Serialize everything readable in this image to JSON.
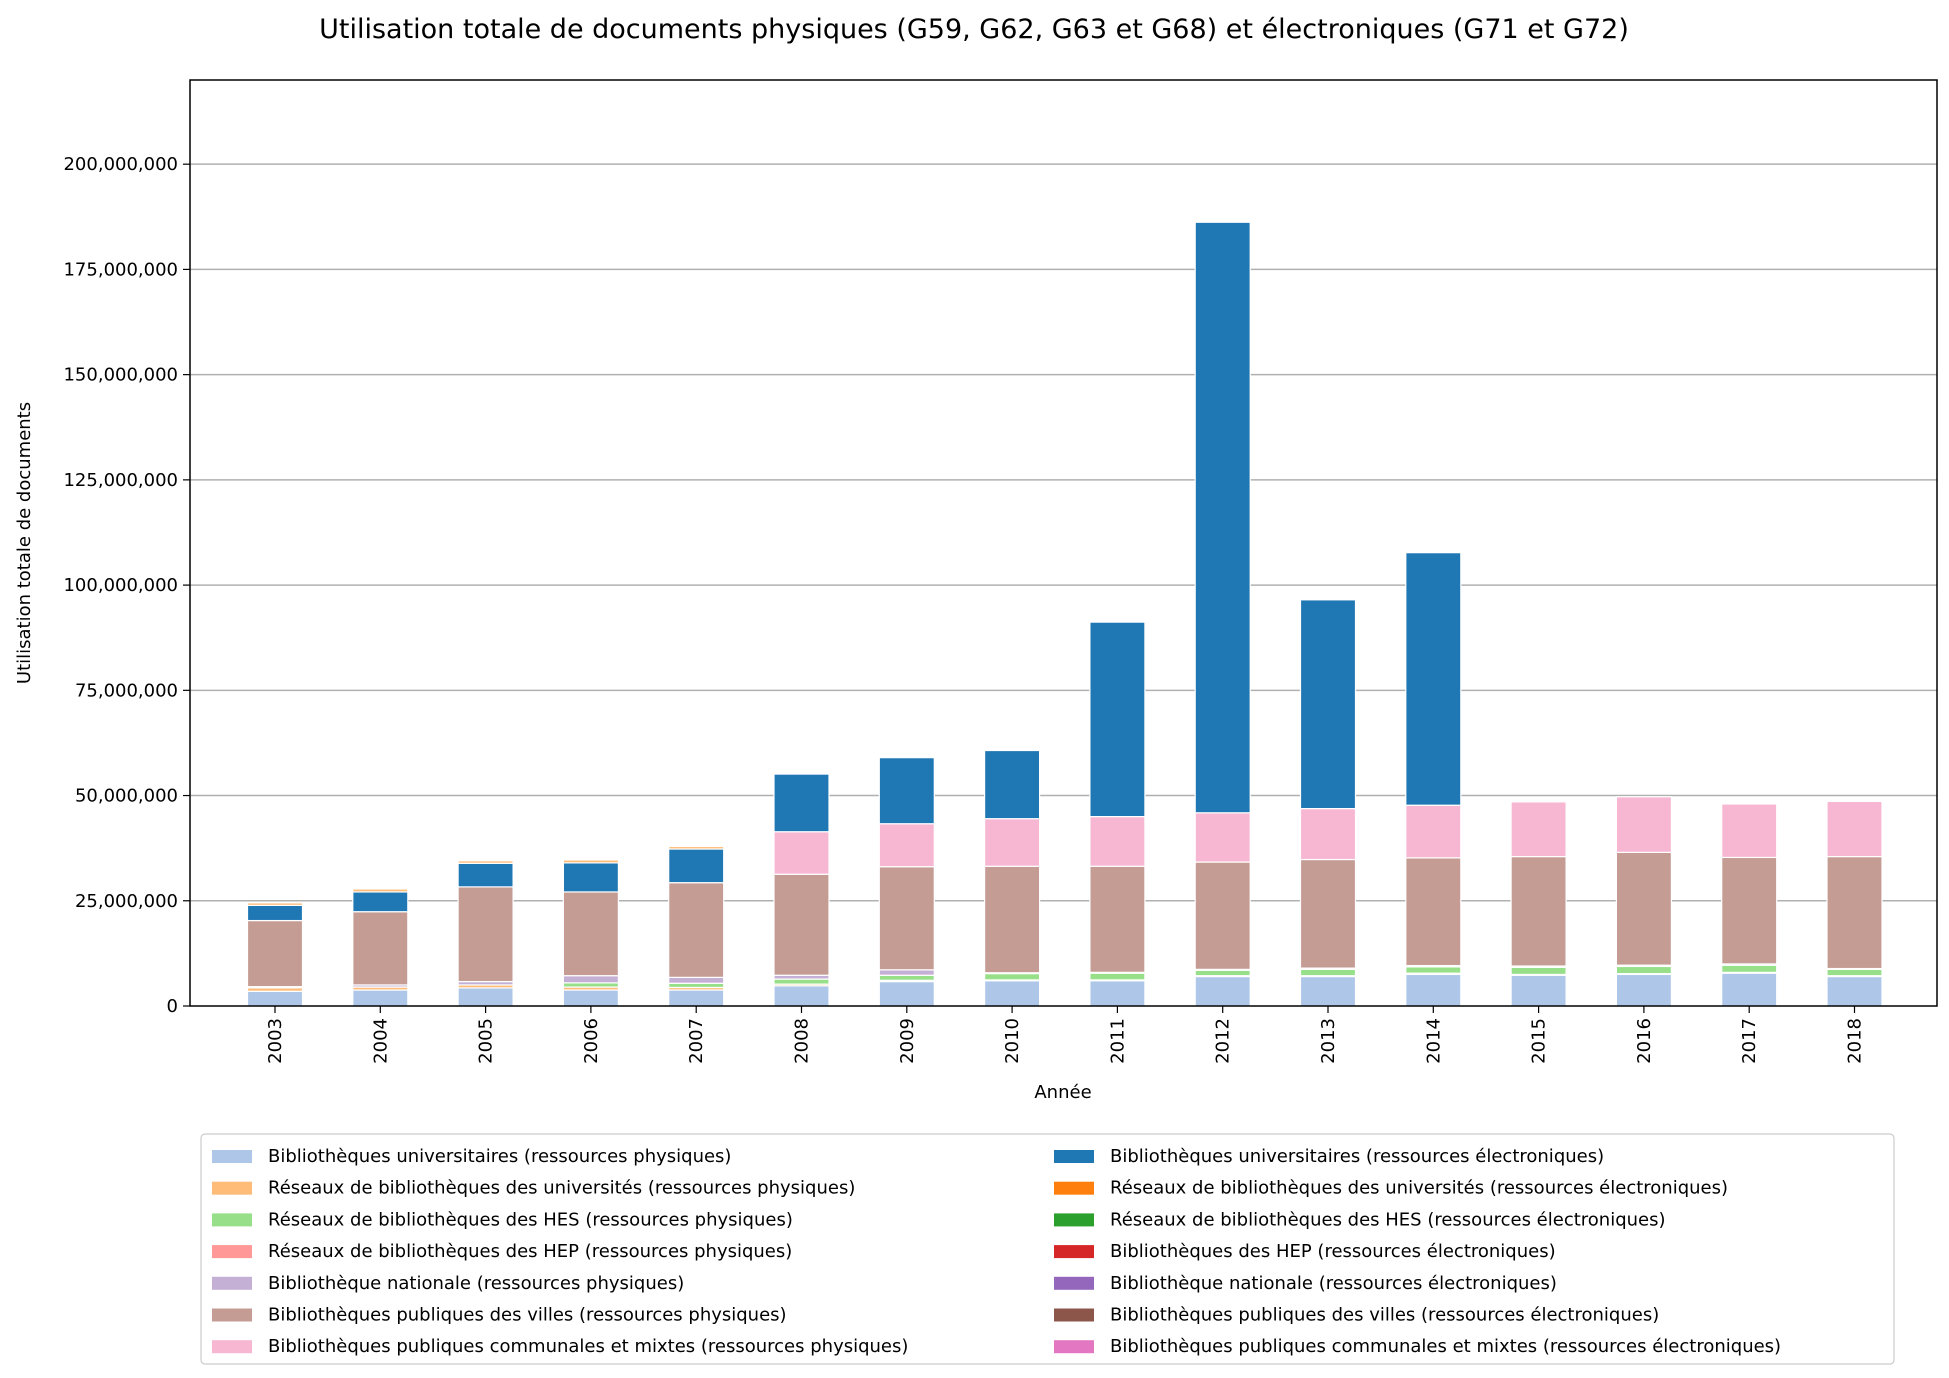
{
  "chart_data": {
    "type": "bar",
    "stacked": true,
    "title": "Utilisation totale de documents physiques (G59, G62, G63 et G68) et électroniques (G71 et G72)",
    "xlabel": "Année",
    "ylabel": "Utilisation totale de documents",
    "ylim": [
      0,
      220000000
    ],
    "yticks": [
      0,
      25000000,
      50000000,
      75000000,
      100000000,
      125000000,
      150000000,
      175000000,
      200000000
    ],
    "ytick_labels": [
      "0",
      "25,000,000",
      "50,000,000",
      "75,000,000",
      "100,000,000",
      "125,000,000",
      "150,000,000",
      "175,000,000",
      "200,000,000"
    ],
    "grid": "horizontal",
    "legend_position": "bottom",
    "categories": [
      "2003",
      "2004",
      "2005",
      "2006",
      "2007",
      "2008",
      "2009",
      "2010",
      "2011",
      "2012",
      "2013",
      "2014",
      "2015",
      "2016",
      "2017",
      "2018"
    ],
    "series": [
      {
        "name": "Bibliothèques universitaires (ressources physiques)",
        "color": "#aec7e8",
        "values": [
          3500000,
          3800000,
          4300000,
          3800000,
          3800000,
          4800000,
          5800000,
          6000000,
          6000000,
          7000000,
          7000000,
          7500000,
          7300000,
          7500000,
          7800000,
          7000000
        ]
      },
      {
        "name": "Réseaux de bibliothèques des universités (ressources physiques)",
        "color": "#ffbb78",
        "values": [
          800000,
          700000,
          700000,
          700000,
          600000,
          400000,
          300000,
          200000,
          200000,
          200000,
          200000,
          300000,
          200000,
          200000,
          200000,
          200000
        ]
      },
      {
        "name": "Réseaux de bibliothèques des HES (ressources physiques)",
        "color": "#98df8a",
        "values": [
          0,
          0,
          0,
          1000000,
          1000000,
          1200000,
          1200000,
          1500000,
          1600000,
          1300000,
          1500000,
          1500000,
          1700000,
          1700000,
          1700000,
          1500000
        ]
      },
      {
        "name": "Réseaux de bibliothèques des HEP (ressources physiques)",
        "color": "#ff9896",
        "values": [
          0,
          0,
          0,
          0,
          0,
          0,
          0,
          0,
          0,
          0,
          0,
          0,
          0,
          0,
          0,
          0
        ]
      },
      {
        "name": "Bibliothèque nationale (ressources physiques)",
        "color": "#c5b0d5",
        "values": [
          300000,
          500000,
          800000,
          1700000,
          1400000,
          900000,
          1300000,
          200000,
          200000,
          200000,
          300000,
          300000,
          300000,
          300000,
          300000,
          200000
        ]
      },
      {
        "name": "Bibliothèques publiques des villes (ressources physiques)",
        "color": "#c49c94",
        "values": [
          15700000,
          17400000,
          22500000,
          19900000,
          22500000,
          24000000,
          24500000,
          25300000,
          25200000,
          25500000,
          25800000,
          25600000,
          26000000,
          26800000,
          25300000,
          26600000
        ]
      },
      {
        "name": "Bibliothèques publiques communales et mixtes (ressources physiques)",
        "color": "#f7b6d2",
        "values": [
          0,
          0,
          0,
          0,
          0,
          10100000,
          10200000,
          11300000,
          11800000,
          11700000,
          12100000,
          12500000,
          13000000,
          13200000,
          12700000,
          13100000
        ]
      },
      {
        "name": "Bibliothèques universitaires (ressources électroniques)",
        "color": "#1f77b4",
        "values": [
          3600000,
          4700000,
          5600000,
          6900000,
          8000000,
          13700000,
          15700000,
          16200000,
          46200000,
          140300000,
          49600000,
          60000000,
          0,
          0,
          0,
          0
        ]
      },
      {
        "name": "Réseaux de bibliothèques des universités (ressources électroniques)",
        "color": "#ff7f0e",
        "values": [
          0,
          0,
          0,
          0,
          0,
          0,
          0,
          0,
          0,
          0,
          0,
          0,
          0,
          0,
          0,
          0
        ]
      },
      {
        "name": "Réseaux de bibliothèques des HES (ressources électroniques)",
        "color": "#2ca02c",
        "values": [
          0,
          0,
          0,
          0,
          0,
          0,
          0,
          0,
          0,
          0,
          0,
          0,
          0,
          0,
          0,
          0
        ]
      },
      {
        "name": "Bibliothèques des HEP (ressources électroniques)",
        "color": "#d62728",
        "values": [
          0,
          0,
          0,
          0,
          0,
          0,
          0,
          0,
          0,
          0,
          0,
          0,
          0,
          0,
          0,
          0
        ]
      },
      {
        "name": "Bibliothèque nationale (ressources électroniques)",
        "color": "#9467bd",
        "values": [
          0,
          0,
          0,
          0,
          0,
          0,
          0,
          0,
          0,
          0,
          0,
          0,
          0,
          0,
          0,
          0
        ]
      },
      {
        "name": "Bibliothèques publiques des villes (ressources électroniques)",
        "color": "#8c564b",
        "values": [
          0,
          0,
          0,
          0,
          0,
          0,
          0,
          0,
          0,
          0,
          0,
          0,
          0,
          0,
          0,
          0
        ]
      },
      {
        "name": "Bibliothèques publiques communales et mixtes (ressources électroniques)",
        "color": "#e377c2",
        "values": [
          0,
          0,
          0,
          0,
          0,
          0,
          0,
          0,
          0,
          0,
          0,
          0,
          0,
          0,
          0,
          0
        ]
      },
      {
        "name": "",
        "color": "#ffbb78",
        "values": [
          600000,
          700000,
          600000,
          700000,
          600000,
          0,
          0,
          0,
          0,
          0,
          0,
          0,
          0,
          0,
          0,
          0
        ]
      }
    ]
  }
}
